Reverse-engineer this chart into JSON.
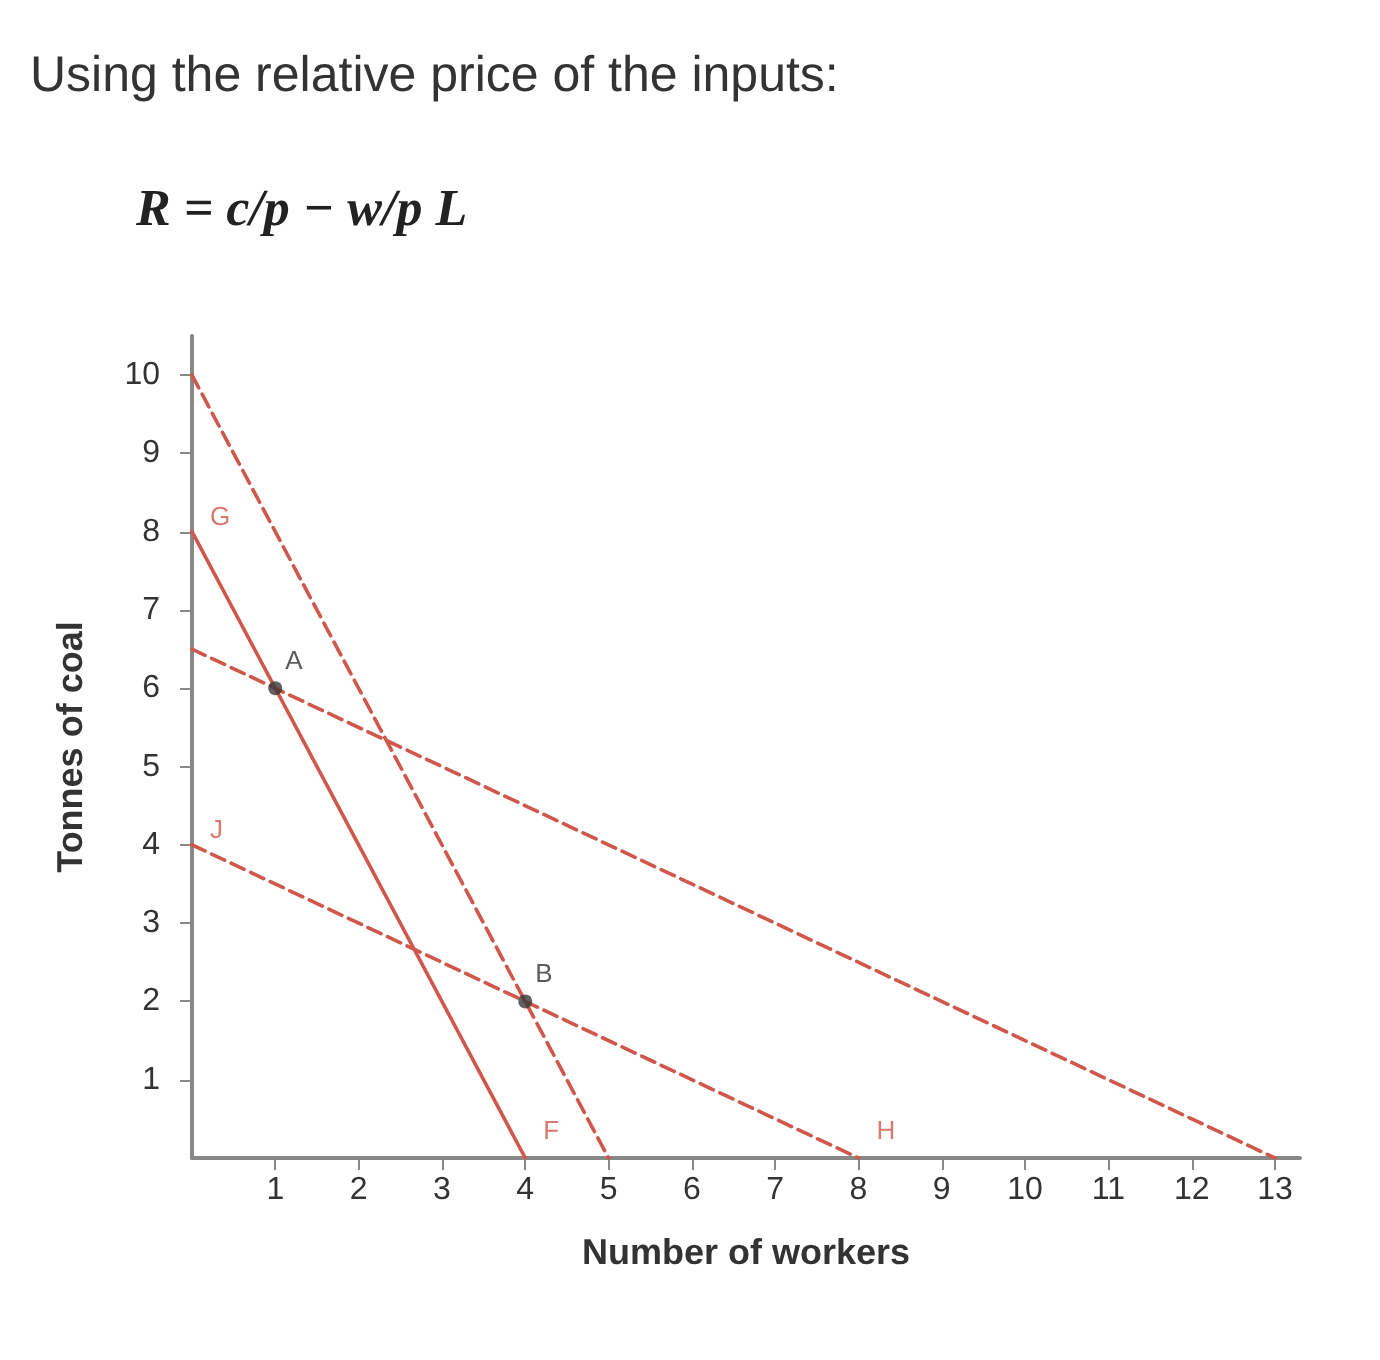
{
  "chart_data": {
    "type": "line",
    "title": "Using the relative price of the inputs:",
    "subtitle": "R = c/p − w/p L",
    "xlabel": "Number of workers",
    "ylabel": "Tonnes of coal",
    "xlim": [
      0,
      13.3
    ],
    "ylim": [
      0,
      10.5
    ],
    "xticks": [
      1,
      2,
      3,
      4,
      5,
      6,
      7,
      8,
      9,
      10,
      11,
      12,
      13
    ],
    "yticks": [
      1,
      2,
      3,
      4,
      5,
      6,
      7,
      8,
      9,
      10
    ],
    "grid": false,
    "marker": "none",
    "series": [
      {
        "x": [
          0,
          4
        ],
        "values": [
          8,
          0
        ],
        "color": "#d0574b",
        "line_style": "solid"
      },
      {
        "x": [
          0,
          5
        ],
        "values": [
          10,
          0
        ],
        "color": "#d0574b",
        "line_style": "dashed"
      },
      {
        "x": [
          0,
          13
        ],
        "values": [
          6.5,
          0
        ],
        "color": "#d0574b",
        "line_style": "dashed"
      },
      {
        "x": [
          0,
          8
        ],
        "values": [
          4,
          0
        ],
        "color": "#d0574b",
        "line_style": "dashed"
      },
      {
        "type": "scatter",
        "x": [
          1,
          4
        ],
        "values": [
          6,
          2
        ],
        "color": "#3a3a3a",
        "marker": "circle"
      }
    ],
    "annotations": [
      {
        "text": "G",
        "x": 0,
        "y": 8
      },
      {
        "text": "J",
        "x": 0,
        "y": 4
      },
      {
        "text": "F",
        "x": 4,
        "y": 0
      },
      {
        "text": "H",
        "x": 8,
        "y": 0
      },
      {
        "text": "A",
        "x": 1,
        "y": 6
      },
      {
        "text": "B",
        "x": 4,
        "y": 2
      }
    ]
  }
}
